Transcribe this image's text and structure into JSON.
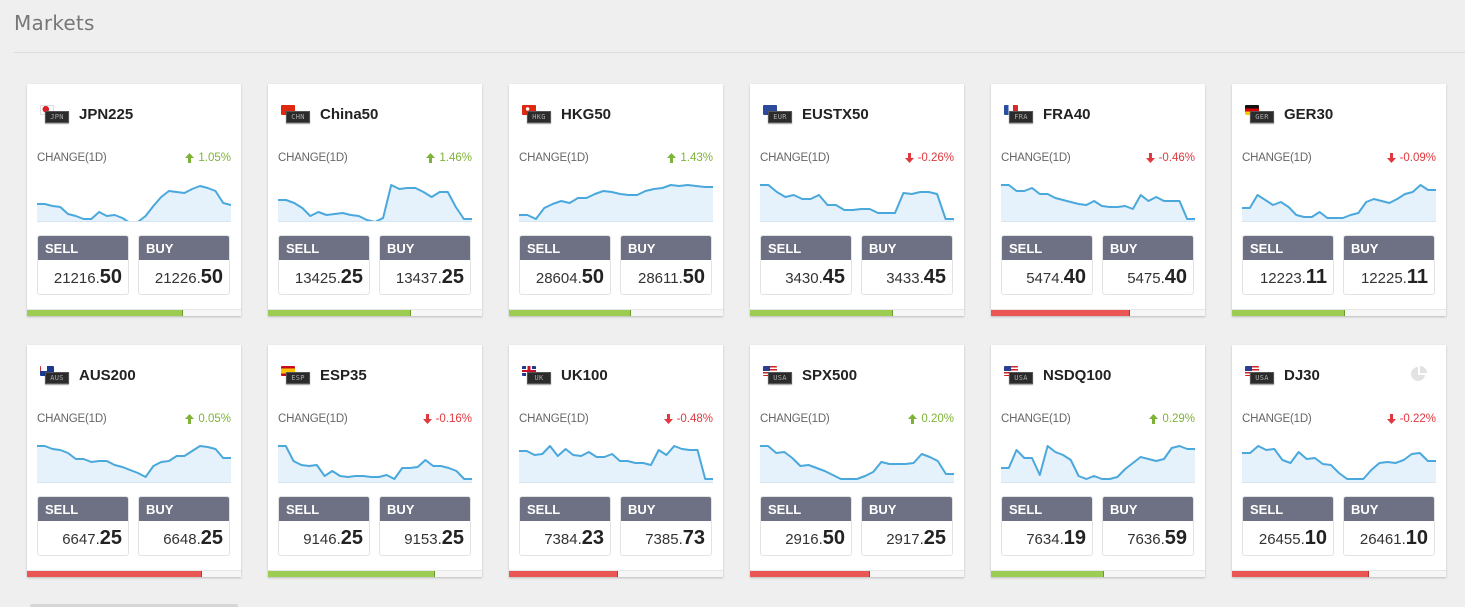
{
  "page": {
    "title": "Markets"
  },
  "labels": {
    "change": "CHANGE(1D)",
    "sell": "SELL",
    "buy": "BUY"
  },
  "colors": {
    "up": "#7fb338",
    "down": "#e0383e",
    "sentiment_green": "#9ccc52",
    "sentiment_red": "#ea5653",
    "price_header": "#6e7184",
    "sparkline_stroke": "#4aa8dd",
    "sparkline_fill": "#e6f2fb"
  },
  "markets": [
    {
      "symbol": "JPN225",
      "flag_code": "JPN",
      "flag": "jp",
      "change": "1.05%",
      "direction": "up",
      "sell_int": "21216.",
      "sell_dec": "50",
      "buy_int": "21226.",
      "buy_dec": "50",
      "sentiment_pct": 73,
      "sentiment_color": "green",
      "spark": [
        22,
        22,
        24,
        25,
        32,
        34,
        37,
        37,
        30,
        34,
        33,
        36,
        41,
        40,
        34,
        24,
        15,
        9,
        10,
        11,
        7,
        4,
        6,
        9,
        21,
        23
      ]
    },
    {
      "symbol": "China50",
      "flag_code": "CHN",
      "flag": "cn",
      "change": "1.46%",
      "direction": "up",
      "sell_int": "13425.",
      "sell_dec": "25",
      "buy_int": "13437.",
      "buy_dec": "25",
      "sentiment_pct": 67,
      "sentiment_color": "green",
      "spark": [
        18,
        18,
        21,
        26,
        34,
        30,
        33,
        32,
        31,
        33,
        34,
        38,
        40,
        36,
        3,
        7,
        6,
        6,
        10,
        15,
        10,
        10,
        25,
        37,
        37
      ]
    },
    {
      "symbol": "HKG50",
      "flag_code": "HKG",
      "flag": "hk",
      "change": "1.43%",
      "direction": "up",
      "sell_int": "28604.",
      "sell_dec": "50",
      "buy_int": "28611.",
      "buy_dec": "50",
      "sentiment_pct": 57,
      "sentiment_color": "green",
      "spark": [
        33,
        33,
        37,
        26,
        22,
        19,
        21,
        16,
        16,
        12,
        9,
        10,
        12,
        13,
        13,
        9,
        7,
        6,
        3,
        4,
        3,
        4,
        5,
        5
      ]
    },
    {
      "symbol": "EUSTX50",
      "flag_code": "EUR",
      "flag": "eu",
      "change": "-0.26%",
      "direction": "down",
      "sell_int": "3430.",
      "sell_dec": "45",
      "buy_int": "3433.",
      "buy_dec": "45",
      "sentiment_pct": 67,
      "sentiment_color": "green",
      "spark": [
        3,
        3,
        10,
        15,
        13,
        17,
        17,
        13,
        23,
        23,
        28,
        28,
        27,
        27,
        31,
        31,
        31,
        11,
        12,
        10,
        10,
        12,
        37,
        37
      ]
    },
    {
      "symbol": "FRA40",
      "flag_code": "FRA",
      "flag": "fr",
      "change": "-0.46%",
      "direction": "down",
      "sell_int": "5474.",
      "sell_dec": "40",
      "buy_int": "5475.",
      "buy_dec": "40",
      "sentiment_pct": 65,
      "sentiment_color": "red",
      "spark": [
        3,
        3,
        9,
        9,
        6,
        12,
        12,
        16,
        18,
        20,
        22,
        23,
        19,
        24,
        25,
        25,
        24,
        27,
        13,
        19,
        15,
        19,
        19,
        19,
        37,
        37
      ]
    },
    {
      "symbol": "GER30",
      "flag_code": "GER",
      "flag": "de",
      "change": "-0.09%",
      "direction": "down",
      "sell_int": "12223.",
      "sell_dec": "11",
      "buy_int": "12225.",
      "buy_dec": "11",
      "sentiment_pct": 53,
      "sentiment_color": "green",
      "spark": [
        26,
        26,
        13,
        18,
        23,
        20,
        25,
        33,
        35,
        35,
        30,
        36,
        36,
        36,
        33,
        31,
        20,
        17,
        19,
        21,
        17,
        12,
        10,
        3,
        8,
        8
      ]
    },
    {
      "symbol": "AUS200",
      "flag_code": "AUS",
      "flag": "au",
      "change": "0.05%",
      "direction": "up",
      "sell_int": "6647.",
      "sell_dec": "25",
      "buy_int": "6648.",
      "buy_dec": "25",
      "sentiment_pct": 82,
      "sentiment_color": "red",
      "spark": [
        3,
        3,
        6,
        7,
        10,
        16,
        16,
        19,
        18,
        18,
        22,
        24,
        27,
        30,
        34,
        23,
        19,
        18,
        13,
        13,
        8,
        3,
        4,
        6,
        15,
        15
      ]
    },
    {
      "symbol": "ESP35",
      "flag_code": "ESP",
      "flag": "es",
      "change": "-0.16%",
      "direction": "down",
      "sell_int": "9146.",
      "sell_dec": "25",
      "buy_int": "9153.",
      "buy_dec": "25",
      "sentiment_pct": 78,
      "sentiment_color": "green",
      "spark": [
        3,
        3,
        18,
        22,
        23,
        22,
        33,
        28,
        33,
        34,
        33,
        33,
        34,
        34,
        32,
        36,
        25,
        25,
        24,
        17,
        23,
        23,
        25,
        28,
        36,
        36
      ]
    },
    {
      "symbol": "UK100",
      "flag_code": "UK",
      "flag": "uk",
      "change": "-0.48%",
      "direction": "down",
      "sell_int": "7384.",
      "sell_dec": "23",
      "buy_int": "7385.",
      "buy_dec": "73",
      "sentiment_pct": 51,
      "sentiment_color": "red",
      "spark": [
        8,
        8,
        12,
        11,
        3,
        13,
        6,
        12,
        13,
        9,
        14,
        14,
        11,
        18,
        18,
        20,
        20,
        22,
        7,
        12,
        3,
        6,
        7,
        7,
        36,
        36
      ]
    },
    {
      "symbol": "SPX500",
      "flag_code": "USA",
      "flag": "us",
      "change": "0.20%",
      "direction": "up",
      "sell_int": "2916.",
      "sell_dec": "50",
      "buy_int": "2917.",
      "buy_dec": "25",
      "sentiment_pct": 56,
      "sentiment_color": "red",
      "spark": [
        3,
        3,
        10,
        9,
        15,
        23,
        22,
        25,
        28,
        32,
        36,
        36,
        36,
        33,
        29,
        19,
        21,
        21,
        21,
        20,
        11,
        14,
        18,
        31,
        31
      ]
    },
    {
      "symbol": "NSDQ100",
      "flag_code": "USA",
      "flag": "us",
      "change": "0.29%",
      "direction": "up",
      "sell_int": "7634.",
      "sell_dec": "19",
      "buy_int": "7636.",
      "buy_dec": "59",
      "sentiment_pct": 53,
      "sentiment_color": "green",
      "spark": [
        25,
        25,
        7,
        15,
        15,
        32,
        3,
        9,
        12,
        17,
        33,
        36,
        33,
        36,
        36,
        34,
        26,
        20,
        14,
        16,
        18,
        16,
        5,
        3,
        6,
        6
      ]
    },
    {
      "symbol": "DJ30",
      "flag_code": "USA",
      "flag": "us",
      "change": "-0.22%",
      "direction": "down",
      "sell_int": "26455.",
      "sell_dec": "10",
      "buy_int": "26461.",
      "buy_dec": "10",
      "sentiment_pct": 64,
      "sentiment_color": "red",
      "pie_icon": true,
      "spark": [
        10,
        10,
        3,
        7,
        6,
        17,
        20,
        9,
        16,
        15,
        21,
        22,
        30,
        36,
        36,
        36,
        27,
        20,
        19,
        20,
        17,
        11,
        10,
        18,
        18
      ]
    }
  ]
}
